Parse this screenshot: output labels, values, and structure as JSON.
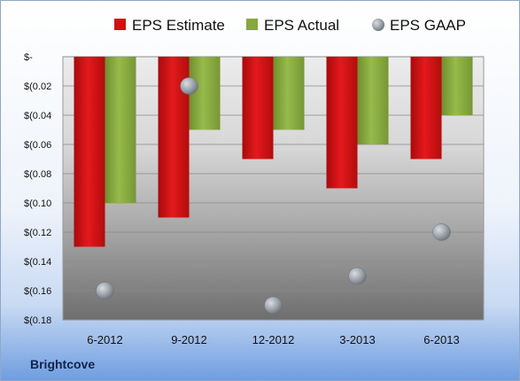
{
  "chart_data": {
    "type": "bar",
    "categories": [
      "6-2012",
      "9-2012",
      "12-2012",
      "3-2013",
      "6-2013"
    ],
    "series": [
      {
        "name": "EPS Estimate",
        "kind": "bar",
        "color": "#d40f12",
        "values": [
          -0.13,
          -0.11,
          -0.07,
          -0.09,
          -0.07
        ]
      },
      {
        "name": "EPS Actual",
        "kind": "bar",
        "color": "#86a83e",
        "values": [
          -0.1,
          -0.05,
          -0.05,
          -0.06,
          -0.04
        ]
      },
      {
        "name": "EPS GAAP",
        "kind": "marker",
        "color": "#9aa3ad",
        "values": [
          -0.16,
          -0.02,
          -0.17,
          -0.15,
          -0.12
        ]
      }
    ],
    "ylim": [
      -0.18,
      0
    ],
    "yticks": [
      {
        "value": 0,
        "label": "$-"
      },
      {
        "value": -0.02,
        "label": "$(0.02"
      },
      {
        "value": -0.04,
        "label": "$(0.04"
      },
      {
        "value": -0.06,
        "label": "$(0.06"
      },
      {
        "value": -0.08,
        "label": "$(0.08"
      },
      {
        "value": -0.1,
        "label": "$(0.10"
      },
      {
        "value": -0.12,
        "label": "$(0.12"
      },
      {
        "value": -0.14,
        "label": "$(0.14"
      },
      {
        "value": -0.16,
        "label": "$(0.16"
      },
      {
        "value": -0.18,
        "label": "$(0.18"
      }
    ],
    "grid": true,
    "legend": "top"
  },
  "company": "Brightcove"
}
